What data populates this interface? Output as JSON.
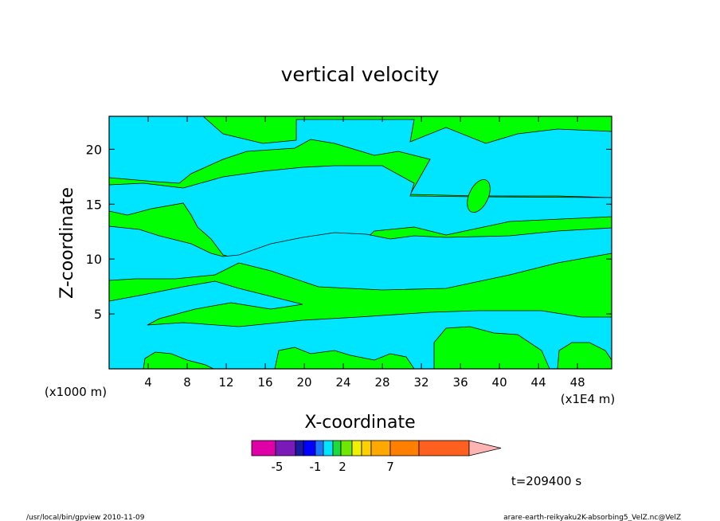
{
  "chart_data": {
    "type": "contour",
    "title": "vertical velocity",
    "xlabel": "X-coordinate",
    "ylabel": "Z-coordinate",
    "x_unit_left": "(x1000 m)",
    "x_unit_right": "(x1E4 m)",
    "xlim": [
      0,
      51.5
    ],
    "ylim": [
      0,
      23
    ],
    "xticks": [
      "4",
      "8",
      "12",
      "16",
      "20",
      "24",
      "28",
      "32",
      "36",
      "40",
      "44",
      "48"
    ],
    "yticks": [
      "5",
      "10",
      "15",
      "20"
    ],
    "colorbar": {
      "levels": [
        -7,
        -6,
        -5,
        -4,
        -3,
        -2,
        -1,
        0,
        1,
        2,
        3,
        4,
        5,
        6,
        7,
        8
      ],
      "colors": [
        "#e000a8",
        "#7a1ab8",
        "#1a1aa0",
        "#0000ff",
        "#1a78ff",
        "#00e5ff",
        "#1adc3a",
        "#6ee800",
        "#f0f000",
        "#ffd000",
        "#ffa800",
        "#ff8000",
        "#ff6020",
        "#ff1010",
        "#ff8080",
        "#ffb4b4"
      ],
      "tick_labels": [
        "-5",
        "-1",
        "2",
        "7"
      ],
      "tick_values": [
        -5,
        -1,
        2,
        7
      ]
    },
    "fill_colors": {
      "negative": "#00e5ff",
      "positive": "#00ff00"
    },
    "time_label": "t=209400 s"
  },
  "footer": {
    "left": "/usr/local/bin/gpview   2010-11-09",
    "right": "arare-earth-reikyaku2K-absorbing5_VelZ.nc@VelZ"
  }
}
